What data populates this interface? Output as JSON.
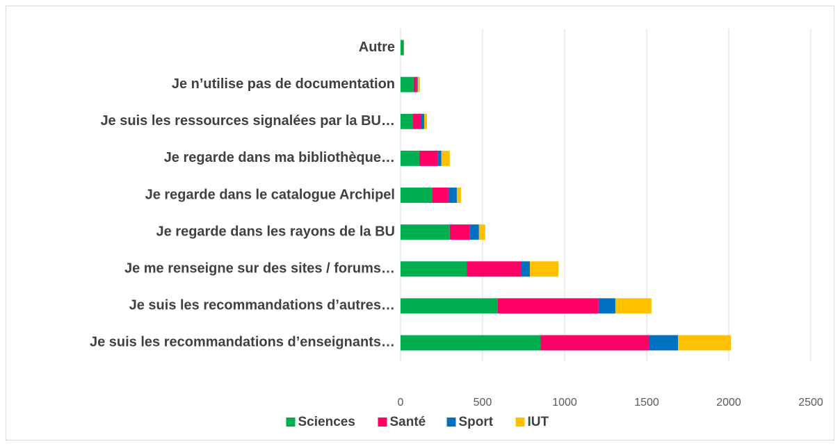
{
  "chart_data": {
    "type": "bar",
    "orientation": "horizontal",
    "stacked": true,
    "categories": [
      "Autre",
      "Je n’utilise pas de documentation",
      "Je suis les ressources signalées par la BU…",
      "Je regarde dans ma bibliothèque…",
      "Je regarde dans le catalogue Archipel",
      "Je regarde dans les rayons de la BU",
      "Je me renseigne sur des sites / forums…",
      "Je suis les recommandations d’autres…",
      "Je suis les recommandations d’enseignants…"
    ],
    "series": [
      {
        "name": "Sciences",
        "color": "#00b050",
        "values": [
          13,
          80,
          76,
          114,
          195,
          300,
          403,
          593,
          852
        ]
      },
      {
        "name": "Santé",
        "color": "#ff0066",
        "values": [
          4,
          17,
          51,
          114,
          97,
          123,
          330,
          614,
          665
        ]
      },
      {
        "name": "Sport",
        "color": "#0070c0",
        "values": [
          2,
          8,
          17,
          21,
          51,
          55,
          55,
          102,
          174
        ]
      },
      {
        "name": "IUT",
        "color": "#ffc000",
        "values": [
          2,
          13,
          17,
          51,
          25,
          38,
          174,
          220,
          322
        ]
      }
    ],
    "xlim": [
      0,
      2500
    ],
    "xticks": [
      0,
      500,
      1000,
      1500,
      2000,
      2500
    ],
    "grid": true,
    "legend": "bottom"
  }
}
